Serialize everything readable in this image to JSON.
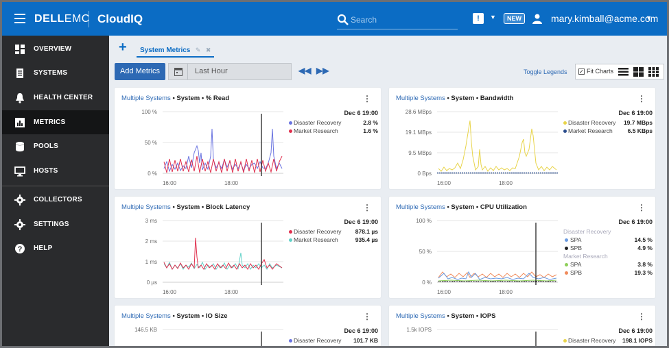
{
  "header": {
    "brand_dell": "D",
    "brand_ell": "ELL",
    "brand_emc": "EMC",
    "app_name": "CloudIQ",
    "search_placeholder": "Search",
    "new_badge": "NEW",
    "user": "mary.kimball@acme.com"
  },
  "sidebar": {
    "items": [
      {
        "label": "OVERVIEW",
        "icon": "overview-icon"
      },
      {
        "label": "SYSTEMS",
        "icon": "systems-icon"
      },
      {
        "label": "HEALTH CENTER",
        "icon": "bell-icon"
      },
      {
        "label": "METRICS",
        "icon": "metrics-icon",
        "active": true
      },
      {
        "label": "POOLS",
        "icon": "database-icon"
      },
      {
        "label": "HOSTS",
        "icon": "monitor-icon"
      },
      {
        "label": "COLLECTORS",
        "icon": "gear-icon"
      },
      {
        "label": "SETTINGS",
        "icon": "gear-icon"
      },
      {
        "label": "HELP",
        "icon": "help-icon"
      }
    ]
  },
  "tabs": {
    "add": "+",
    "active_tab": "System Metrics"
  },
  "toolbar": {
    "add_metrics": "Add Metrics",
    "time_range": "Last Hour",
    "toggle_legends": "Toggle Legends",
    "fit_charts": "Fit Charts"
  },
  "colors": {
    "accent": "#0b6cc4",
    "blue_series": "#6a74e0",
    "red_series": "#e0304e",
    "yellow_series": "#e8d44a",
    "navy_series": "#2a4d8c",
    "teal_series": "#63d2c9",
    "green_series": "#8ecf5a",
    "orange_series": "#f08a5a",
    "black_series": "#222222"
  },
  "cards": [
    {
      "systems_link": "Multiple Systems",
      "title_rest": "• System • % Read",
      "timestamp": "Dec 6 19:00",
      "y_ticks": [
        "100 %",
        "50 %",
        "0 %"
      ],
      "x_ticks": [
        "16:00",
        "18:00"
      ],
      "legend": [
        {
          "name": "Disaster Recovery",
          "value": "2.8 %",
          "color": "#6a74e0"
        },
        {
          "name": "Market Research",
          "value": "1.6 %",
          "color": "#e0304e"
        }
      ]
    },
    {
      "systems_link": "Multiple Systems",
      "title_rest": "• System • Bandwidth",
      "timestamp": "Dec 6 19:00",
      "y_ticks": [
        "28.6 MBps",
        "19.1 MBps",
        "9.5 MBps",
        "0 Bps"
      ],
      "x_ticks": [
        "16:00",
        "18:00"
      ],
      "legend": [
        {
          "name": "Disaster Recovery",
          "value": "19.7 MBps",
          "color": "#e8d44a"
        },
        {
          "name": "Market Research",
          "value": "6.5 KBps",
          "color": "#2a4d8c"
        }
      ]
    },
    {
      "systems_link": "Multiple Systems",
      "title_rest": "• System • Block Latency",
      "timestamp": "Dec 6 19:00",
      "y_ticks": [
        "3 ms",
        "2 ms",
        "1 ms",
        "0 µs"
      ],
      "x_ticks": [
        "16:00",
        "18:00"
      ],
      "legend": [
        {
          "name": "Disaster Recovery",
          "value": "878.1 µs",
          "color": "#e0304e"
        },
        {
          "name": "Market Research",
          "value": "935.4 µs",
          "color": "#63d2c9"
        }
      ]
    },
    {
      "systems_link": "Multiple Systems",
      "title_rest": "• System • CPU Utilization",
      "timestamp": "Dec 6 19:00",
      "y_ticks": [
        "100 %",
        "50 %",
        "0 %"
      ],
      "x_ticks": [
        "16:00",
        "18:00"
      ],
      "groups": [
        {
          "group": "Disaster Recovery",
          "items": [
            {
              "name": "SPA",
              "value": "14.5 %",
              "color": "#6a9ae0"
            },
            {
              "name": "SPB",
              "value": "4.9 %",
              "color": "#222222"
            }
          ]
        },
        {
          "group": "Market Research",
          "items": [
            {
              "name": "SPA",
              "value": "3.8 %",
              "color": "#8ecf5a"
            },
            {
              "name": "SPB",
              "value": "19.3 %",
              "color": "#f08a5a"
            }
          ]
        }
      ]
    },
    {
      "systems_link": "Multiple Systems",
      "title_rest": "• System • IO Size",
      "timestamp": "Dec 6 19:00",
      "y_ticks": [
        "146.5 KB"
      ],
      "legend": [
        {
          "name": "Disaster Recovery",
          "value": "101.7 KB",
          "color": "#6a74e0"
        }
      ]
    },
    {
      "systems_link": "Multiple Systems",
      "title_rest": "• System • IOPS",
      "timestamp": "Dec 6 19:00",
      "y_ticks": [
        "1.5k IOPS"
      ],
      "legend": [
        {
          "name": "Disaster Recovery",
          "value": "198.1 IOPS",
          "color": "#e8d44a"
        }
      ]
    }
  ]
}
